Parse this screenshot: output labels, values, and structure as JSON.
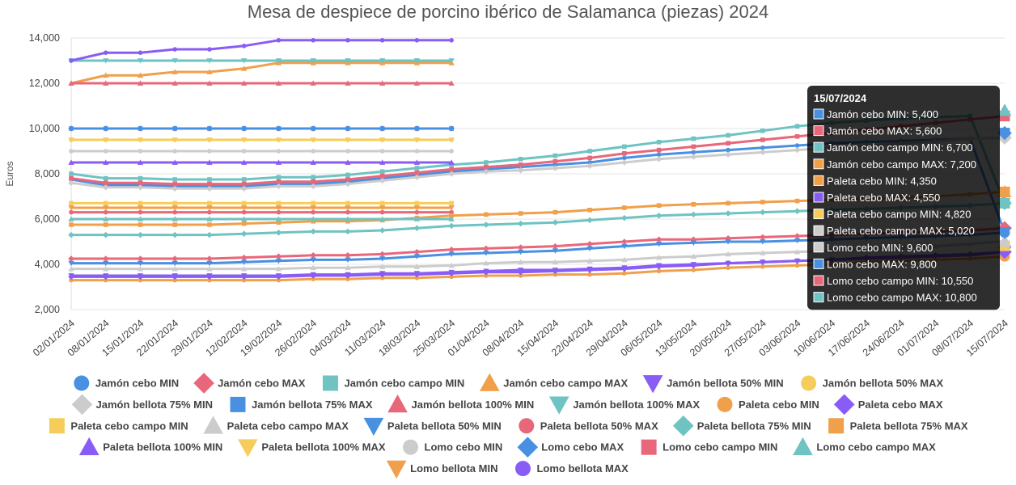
{
  "chart_data": {
    "type": "line",
    "title": "Mesa de despiece de porcino ibérico de Salamanca (piezas) 2024",
    "ylabel": "Euros",
    "ylim": [
      2000,
      14000
    ],
    "yticks": [
      "2,000",
      "4,000",
      "6,000",
      "8,000",
      "10,000",
      "12,000",
      "14,000"
    ],
    "ytick_values": [
      2000,
      4000,
      6000,
      8000,
      10000,
      12000,
      14000
    ],
    "grid": true,
    "legend_position": "bottom",
    "categories": [
      "02/01/2024",
      "08/01/2024",
      "15/01/2024",
      "22/01/2024",
      "29/01/2024",
      "12/02/2024",
      "19/02/2024",
      "26/02/2024",
      "04/03/2024",
      "11/03/2024",
      "18/03/2024",
      "25/03/2024",
      "01/04/2024",
      "08/04/2024",
      "15/04/2024",
      "22/04/2024",
      "29/04/2024",
      "06/05/2024",
      "13/05/2024",
      "20/05/2024",
      "27/05/2024",
      "03/06/2024",
      "10/06/2024",
      "17/06/2024",
      "24/06/2024",
      "01/07/2024",
      "08/07/2024",
      "15/07/2024"
    ],
    "series": [
      {
        "name": "Jamón cebo MIN",
        "color": "#4a90e2",
        "marker": "circle",
        "values": [
          7750,
          7500,
          7500,
          7450,
          7450,
          7450,
          7550,
          7550,
          7650,
          7800,
          7950,
          8100,
          8200,
          8300,
          8400,
          8500,
          8700,
          8850,
          8950,
          9050,
          9150,
          9250,
          9350,
          9400,
          9450,
          9500,
          9550,
          5400
        ]
      },
      {
        "name": "Jamón cebo MAX",
        "color": "#e8677a",
        "marker": "diamond",
        "values": [
          4250,
          4250,
          4250,
          4250,
          4250,
          4300,
          4350,
          4400,
          4400,
          4450,
          4550,
          4650,
          4700,
          4750,
          4800,
          4900,
          5000,
          5100,
          5100,
          5150,
          5200,
          5250,
          5300,
          5350,
          5400,
          5450,
          5500,
          5600
        ]
      },
      {
        "name": "Jamón cebo campo MIN",
        "color": "#6fc3c2",
        "marker": "square",
        "values": [
          8000,
          7800,
          7800,
          7750,
          7750,
          7750,
          7850,
          7850,
          7950,
          8100,
          8250,
          8400,
          8500,
          8650,
          8800,
          9000,
          9200,
          9400,
          9550,
          9700,
          9900,
          10100,
          10250,
          10350,
          10450,
          10500,
          10550,
          6700
        ]
      },
      {
        "name": "Jamón cebo campo MAX",
        "color": "#f0a04b",
        "marker": "triangle",
        "values": [
          12000,
          12350,
          12350,
          12500,
          12500,
          12650,
          12900,
          12900,
          12900,
          12900,
          12900,
          12900,
          null,
          null,
          null,
          null,
          null,
          null,
          null,
          null,
          null,
          null,
          null,
          null,
          null,
          null,
          null,
          7200
        ]
      },
      {
        "name": "Jamón bellota 50% MIN",
        "color": "#8a5cf6",
        "marker": "triangle-down",
        "values": [
          3500,
          3500,
          3500,
          3500,
          3500,
          3500,
          3500,
          3550,
          3550,
          3600,
          3600,
          3650,
          3700,
          3750,
          3750,
          3800,
          3850,
          3950,
          4000,
          4050,
          4100,
          4150,
          4200,
          4250,
          4300,
          4350,
          4400,
          4550
        ]
      },
      {
        "name": "Jamón bellota 50% MAX",
        "color": "#f6cd5b",
        "marker": "circle",
        "values": [
          9500,
          9500,
          9500,
          9500,
          9500,
          9500,
          9500,
          9500,
          9500,
          9500,
          9500,
          9500,
          null,
          null,
          null,
          null,
          null,
          null,
          null,
          null,
          null,
          null,
          null,
          null,
          null,
          null,
          null,
          4820
        ]
      },
      {
        "name": "Jamón bellota 75% MIN",
        "color": "#cccccc",
        "marker": "diamond",
        "values": [
          7600,
          7400,
          7400,
          7350,
          7350,
          7350,
          7450,
          7450,
          7550,
          7700,
          7850,
          8000,
          8100,
          8150,
          8250,
          8350,
          8500,
          8650,
          8750,
          8850,
          8950,
          9050,
          9150,
          9250,
          9350,
          9450,
          9550,
          9600
        ]
      },
      {
        "name": "Jamón bellota 75% MAX",
        "color": "#4a90e2",
        "marker": "square",
        "values": [
          10000,
          10000,
          10000,
          10000,
          10000,
          10000,
          10000,
          10000,
          10000,
          10000,
          10000,
          10000,
          null,
          null,
          null,
          null,
          null,
          null,
          null,
          null,
          null,
          null,
          null,
          null,
          null,
          null,
          null,
          9800
        ]
      },
      {
        "name": "Jamón bellota 100% MIN",
        "color": "#e8677a",
        "marker": "triangle",
        "values": [
          12000,
          12000,
          12000,
          12000,
          12000,
          12000,
          12000,
          12000,
          12000,
          12000,
          12000,
          12000,
          null,
          null,
          null,
          null,
          null,
          null,
          null,
          null,
          null,
          null,
          null,
          null,
          null,
          null,
          null,
          null
        ]
      },
      {
        "name": "Jamón bellota 100% MAX",
        "color": "#6fc3c2",
        "marker": "triangle-down",
        "values": [
          13000,
          13000,
          13000,
          13000,
          13000,
          13000,
          13000,
          13000,
          13000,
          13000,
          13000,
          13000,
          null,
          null,
          null,
          null,
          null,
          null,
          null,
          null,
          null,
          null,
          null,
          null,
          null,
          null,
          null,
          null
        ]
      },
      {
        "name": "Paleta cebo MIN",
        "color": "#f0a04b",
        "marker": "circle",
        "values": [
          3300,
          3300,
          3300,
          3300,
          3300,
          3300,
          3300,
          3350,
          3350,
          3400,
          3400,
          3450,
          3500,
          3500,
          3550,
          3550,
          3600,
          3700,
          3750,
          3850,
          3900,
          3950,
          4000,
          4100,
          4150,
          4200,
          4250,
          4350
        ]
      },
      {
        "name": "Paleta cebo MAX",
        "color": "#8a5cf6",
        "marker": "diamond",
        "values": [
          3450,
          3450,
          3450,
          3450,
          3450,
          3450,
          3450,
          3500,
          3500,
          3550,
          3550,
          3600,
          3650,
          3650,
          3700,
          3750,
          3800,
          3900,
          3950,
          4050,
          4100,
          4150,
          4200,
          4300,
          4350,
          4400,
          4450,
          4550
        ]
      },
      {
        "name": "Paleta cebo campo MIN",
        "color": "#f6cd5b",
        "marker": "square",
        "values": [
          6700,
          6700,
          6700,
          6700,
          6700,
          6700,
          6700,
          6700,
          6700,
          6700,
          6700,
          6700,
          null,
          null,
          null,
          null,
          null,
          null,
          null,
          null,
          null,
          null,
          null,
          null,
          null,
          null,
          null,
          4820
        ]
      },
      {
        "name": "Paleta cebo campo MAX",
        "color": "#cccccc",
        "marker": "triangle",
        "values": [
          3800,
          3800,
          3800,
          3800,
          3800,
          3800,
          3800,
          3850,
          3850,
          3900,
          3900,
          3950,
          4050,
          4100,
          4100,
          4150,
          4200,
          4300,
          4350,
          4450,
          4500,
          4550,
          4600,
          4700,
          4750,
          4800,
          4900,
          5020
        ]
      },
      {
        "name": "Paleta bellota 50% MIN",
        "color": "#4a90e2",
        "marker": "triangle-down",
        "values": [
          4050,
          4050,
          4050,
          4050,
          4050,
          4100,
          4150,
          4200,
          4200,
          4250,
          4350,
          4450,
          4500,
          4550,
          4600,
          4700,
          4800,
          4900,
          4950,
          5000,
          5000,
          5050,
          5100,
          5150,
          5200,
          5250,
          5300,
          5400
        ]
      },
      {
        "name": "Paleta bellota 50% MAX",
        "color": "#e8677a",
        "marker": "circle",
        "values": [
          6300,
          6300,
          6300,
          6300,
          6300,
          6300,
          6300,
          6300,
          6300,
          6300,
          6300,
          6300,
          null,
          null,
          null,
          null,
          null,
          null,
          null,
          null,
          null,
          null,
          null,
          null,
          null,
          null,
          null,
          null
        ]
      },
      {
        "name": "Paleta bellota 75% MIN",
        "color": "#6fc3c2",
        "marker": "diamond",
        "values": [
          5300,
          5300,
          5300,
          5300,
          5300,
          5350,
          5400,
          5450,
          5450,
          5500,
          5600,
          5700,
          5750,
          5800,
          5850,
          5950,
          6050,
          6150,
          6200,
          6250,
          6300,
          6350,
          6400,
          6450,
          6500,
          6550,
          6600,
          6700
        ]
      },
      {
        "name": "Paleta bellota 75% MAX",
        "color": "#f0a04b",
        "marker": "square",
        "values": [
          5750,
          5750,
          5750,
          5750,
          5750,
          5800,
          5850,
          5900,
          5900,
          5950,
          6050,
          6150,
          6200,
          6250,
          6300,
          6400,
          6500,
          6600,
          6650,
          6700,
          6750,
          6800,
          6850,
          6900,
          6950,
          7000,
          7100,
          7200
        ]
      },
      {
        "name": "Paleta bellota 100% MIN",
        "color": "#8a5cf6",
        "marker": "triangle",
        "values": [
          8500,
          8500,
          8500,
          8500,
          8500,
          8500,
          8500,
          8500,
          8500,
          8500,
          8500,
          8500,
          null,
          null,
          null,
          null,
          null,
          null,
          null,
          null,
          null,
          null,
          null,
          null,
          null,
          null,
          null,
          null
        ]
      },
      {
        "name": "Paleta bellota 100% MAX",
        "color": "#f6cd5b",
        "marker": "triangle-down",
        "values": [
          9500,
          9500,
          9500,
          9500,
          9500,
          9500,
          9500,
          9500,
          9500,
          9500,
          9500,
          9500,
          null,
          null,
          null,
          null,
          null,
          null,
          null,
          null,
          null,
          null,
          null,
          null,
          null,
          null,
          null,
          null
        ]
      },
      {
        "name": "Lomo cebo MIN",
        "color": "#cccccc",
        "marker": "circle",
        "values": [
          9000,
          9000,
          9000,
          9000,
          9000,
          9000,
          9000,
          9000,
          9000,
          9000,
          9000,
          9000,
          null,
          null,
          null,
          null,
          null,
          null,
          null,
          null,
          null,
          null,
          null,
          null,
          null,
          null,
          null,
          9600
        ]
      },
      {
        "name": "Lomo cebo MAX",
        "color": "#4a90e2",
        "marker": "diamond",
        "values": [
          10000,
          10000,
          10000,
          10000,
          10000,
          10000,
          10000,
          10000,
          10000,
          10000,
          10000,
          10000,
          null,
          null,
          null,
          null,
          null,
          null,
          null,
          null,
          null,
          null,
          null,
          null,
          null,
          null,
          null,
          9800
        ]
      },
      {
        "name": "Lomo cebo campo MIN",
        "color": "#e8677a",
        "marker": "square",
        "values": [
          7800,
          7600,
          7600,
          7550,
          7550,
          7550,
          7650,
          7650,
          7750,
          7900,
          8050,
          8200,
          8300,
          8400,
          8550,
          8700,
          8900,
          9050,
          9200,
          9350,
          9500,
          9650,
          9800,
          9950,
          10100,
          10250,
          10400,
          10550
        ]
      },
      {
        "name": "Lomo cebo campo MAX",
        "color": "#6fc3c2",
        "marker": "triangle",
        "values": [
          6000,
          6000,
          6000,
          6000,
          6000,
          6000,
          6000,
          6000,
          6000,
          6000,
          6000,
          6000,
          null,
          null,
          null,
          null,
          null,
          null,
          null,
          null,
          null,
          null,
          null,
          null,
          null,
          null,
          null,
          10800
        ]
      },
      {
        "name": "Lomo bellota MIN",
        "color": "#f0a04b",
        "marker": "triangle-down",
        "values": [
          6500,
          6500,
          6500,
          6500,
          6500,
          6500,
          6500,
          6500,
          6500,
          6500,
          6500,
          6500,
          null,
          null,
          null,
          null,
          null,
          null,
          null,
          null,
          null,
          null,
          null,
          null,
          null,
          null,
          null,
          null
        ]
      },
      {
        "name": "Lomo bellota MAX",
        "color": "#8a5cf6",
        "marker": "circle",
        "values": [
          13000,
          13350,
          13350,
          13500,
          13500,
          13650,
          13900,
          13900,
          13900,
          13900,
          13900,
          13900,
          null,
          null,
          null,
          null,
          null,
          null,
          null,
          null,
          null,
          null,
          null,
          null,
          null,
          null,
          null,
          null
        ]
      }
    ]
  },
  "tooltip": {
    "date": "15/07/2024",
    "rows": [
      {
        "label": "Jamón cebo MIN: 5,400",
        "color": "#4a90e2"
      },
      {
        "label": "Jamón cebo MAX: 5,600",
        "color": "#e8677a"
      },
      {
        "label": "Jamón cebo campo MIN: 6,700",
        "color": "#6fc3c2"
      },
      {
        "label": "Jamón cebo campo MAX: 7,200",
        "color": "#f0a04b"
      },
      {
        "label": "Paleta cebo MIN: 4,350",
        "color": "#f0a04b"
      },
      {
        "label": "Paleta cebo MAX: 4,550",
        "color": "#8a5cf6"
      },
      {
        "label": "Paleta cebo campo MIN: 4,820",
        "color": "#f6cd5b"
      },
      {
        "label": "Paleta cebo campo MAX: 5,020",
        "color": "#cccccc"
      },
      {
        "label": "Lomo cebo MIN: 9,600",
        "color": "#cccccc"
      },
      {
        "label": "Lomo cebo MAX: 9,800",
        "color": "#4a90e2"
      },
      {
        "label": "Lomo cebo campo MIN: 10,550",
        "color": "#e8677a"
      },
      {
        "label": "Lomo cebo campo MAX: 10,800",
        "color": "#6fc3c2"
      }
    ]
  }
}
